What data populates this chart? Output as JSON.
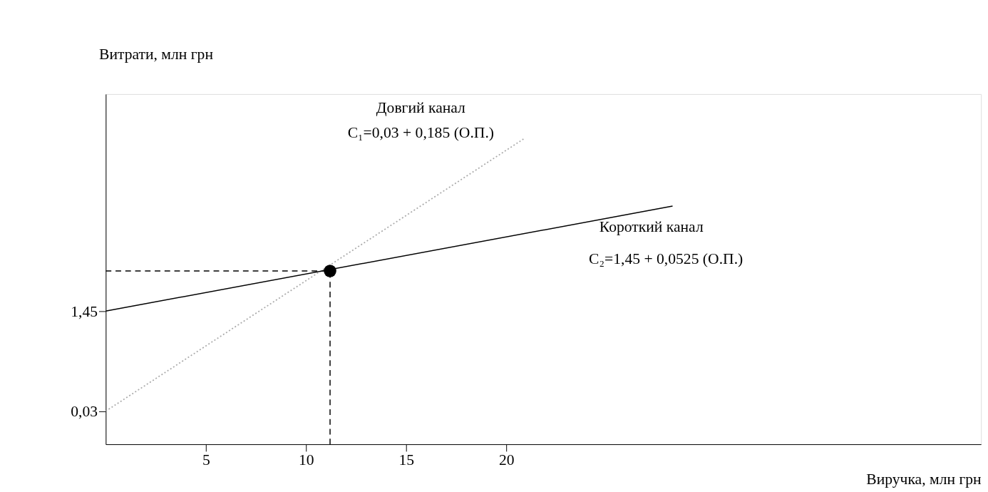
{
  "chart_data": {
    "type": "line",
    "xlabel": "Виручка, млн грн",
    "ylabel": "Витрати, млн грн",
    "xlim": [
      0,
      43.7
    ],
    "ylim": [
      -0.44,
      4.53
    ],
    "xticks": [
      5,
      10,
      15,
      20
    ],
    "yticks": [
      {
        "value": 0.03,
        "label": "0,03"
      },
      {
        "value": 1.45,
        "label": "1,45"
      }
    ],
    "grid": false,
    "series": [
      {
        "x": [
          0,
          20.9
        ],
        "values": [
          0.03,
          3.9
        ],
        "color": "#aaaaaa",
        "line_style": "dotted"
      },
      {
        "x": [
          0,
          28.3
        ],
        "values": [
          1.45,
          2.94
        ],
        "color": "#000000",
        "line_style": "solid"
      },
      {
        "x": [
          0,
          11.2,
          11.2
        ],
        "values": [
          2.02,
          2.02,
          -0.44
        ],
        "color": "#000000",
        "line_style": "dashed"
      },
      {
        "type": "scatter",
        "x": [
          11.2
        ],
        "values": [
          2.02
        ],
        "color": "#000000",
        "marker": "circle"
      }
    ],
    "annotations": [
      "Довгий  канал",
      "C₁=0,03 + 0,185 (О.П.)",
      "Короткий канал",
      "C₂=1,45 + 0,0525 (О.П.)"
    ]
  }
}
